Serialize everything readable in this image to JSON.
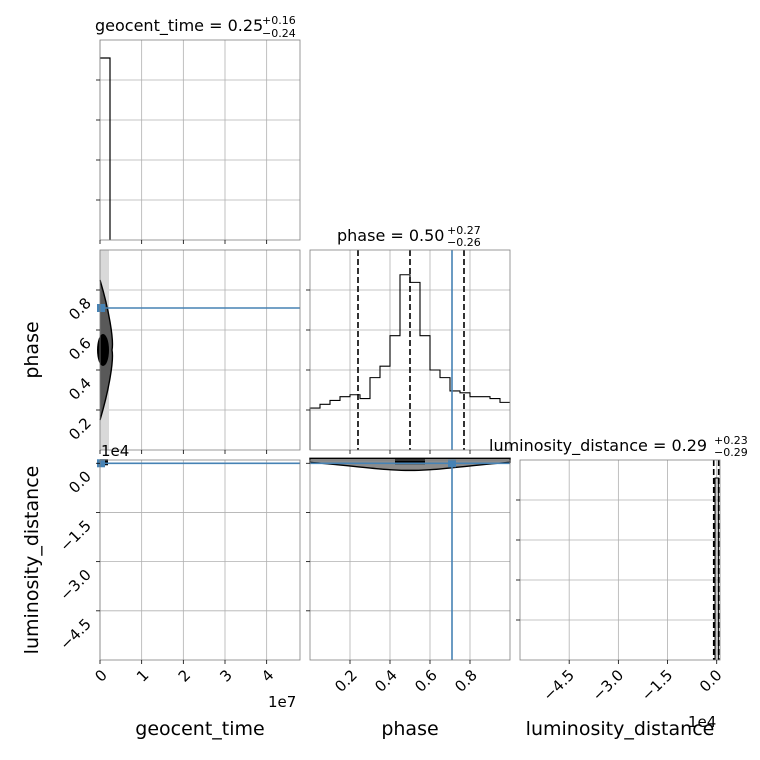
{
  "colors": {
    "truth": "#4682b4",
    "hist": "#000000",
    "grid": "#b0b0b0",
    "frame": "#7f7f7f",
    "density": "#000000"
  },
  "chart_data": [
    {
      "type": "histogram",
      "panel": "geocent_time marginal",
      "title_main": "geocent_time = 0.25",
      "title_sup": "+0.16",
      "title_sub": "−0.24",
      "xlim": [
        0,
        48000000
      ],
      "xticks": [
        0,
        10000000,
        20000000,
        30000000,
        40000000
      ],
      "bins": [
        [
          0,
          2400000
        ]
      ],
      "heights": [
        1.0
      ],
      "grid": true
    },
    {
      "type": "histogram",
      "panel": "phase marginal",
      "title_main": "phase = 0.50",
      "title_sup": "+0.27",
      "title_sub": "−0.26",
      "xlim": [
        0.0,
        1.0
      ],
      "xticks": [
        0.2,
        0.4,
        0.6,
        0.8
      ],
      "bin_edges": [
        0.0,
        0.05,
        0.1,
        0.15,
        0.2,
        0.25,
        0.3,
        0.35,
        0.4,
        0.45,
        0.5,
        0.55,
        0.6,
        0.65,
        0.7,
        0.75,
        0.8,
        0.85,
        0.9,
        0.95,
        1.0
      ],
      "heights": [
        0.22,
        0.24,
        0.26,
        0.28,
        0.29,
        0.27,
        0.38,
        0.44,
        0.6,
        0.92,
        0.88,
        0.6,
        0.42,
        0.38,
        0.31,
        0.3,
        0.28,
        0.28,
        0.27,
        0.25
      ],
      "quantiles": [
        0.24,
        0.5,
        0.77
      ],
      "truth": 0.71,
      "grid": true
    },
    {
      "type": "histogram",
      "panel": "luminosity_distance marginal",
      "title_main": "luminosity_distance = 0.29",
      "title_sup": "+0.23",
      "title_sub": "−0.29",
      "xlim": [
        -60000,
        1000
      ],
      "xticks": [
        -45000,
        -30000,
        -15000,
        0
      ],
      "xtick_labels": [
        "−4.5",
        "−3.0",
        "−1.5",
        "0.0"
      ],
      "offset_text": "1e4",
      "bins": [
        [
          -500,
          500
        ]
      ],
      "heights": [
        1.0
      ],
      "quantiles": [
        0.0,
        290
      ],
      "grid": true
    },
    {
      "type": "scatter",
      "panel": "phase vs geocent_time",
      "xlim": [
        0,
        48000000
      ],
      "ylim": [
        0.0,
        1.0
      ],
      "yticks": [
        0.2,
        0.4,
        0.6,
        0.8
      ],
      "truth_x": 0,
      "truth_y": 0.71,
      "grid": true
    },
    {
      "type": "scatter",
      "panel": "luminosity_distance vs geocent_time",
      "xlim": [
        0,
        48000000
      ],
      "ylim": [
        -60000,
        1000
      ],
      "yticks": [
        0,
        -15000,
        -30000,
        -45000
      ],
      "ytick_labels": [
        "0.0",
        "−1.5",
        "−3.0",
        "−4.5"
      ],
      "offset_text": "1e4",
      "truth_x": 0,
      "truth_y": 0,
      "grid": true
    },
    {
      "type": "scatter",
      "panel": "luminosity_distance vs phase",
      "xlim": [
        0.0,
        1.0
      ],
      "ylim": [
        -60000,
        1000
      ],
      "truth_x": 0.71,
      "truth_y": 0,
      "grid": true
    }
  ],
  "axes": {
    "x_labels": [
      "geocent_time",
      "phase",
      "luminosity_distance"
    ],
    "y_labels": [
      "phase",
      "luminosity_distance"
    ],
    "geocent_xticks": [
      "0",
      "1",
      "2",
      "3",
      "4"
    ],
    "geocent_offset": "1e7",
    "phase_ticks": [
      "0.2",
      "0.4",
      "0.6",
      "0.8"
    ]
  }
}
